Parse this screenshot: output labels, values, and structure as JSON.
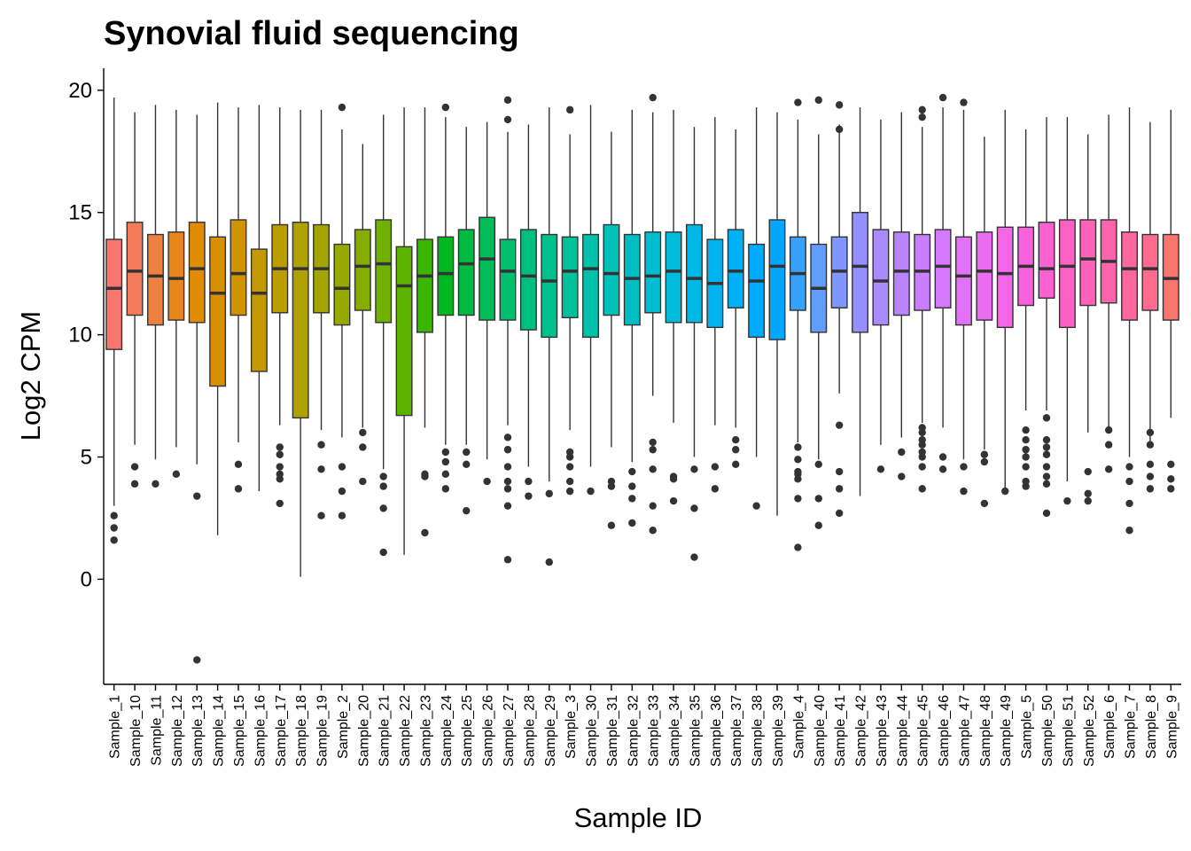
{
  "chart_data": {
    "type": "boxplot",
    "title": "Synovial fluid sequencing",
    "xlabel": "Sample ID",
    "ylabel": "Log2 CPM",
    "ylim": [
      -4.3,
      20.9
    ],
    "yticks": [
      0,
      5,
      10,
      15,
      20
    ],
    "grid": false,
    "legend": "none",
    "categories": [
      "Sample_1",
      "Sample_10",
      "Sample_11",
      "Sample_12",
      "Sample_13",
      "Sample_14",
      "Sample_15",
      "Sample_16",
      "Sample_17",
      "Sample_18",
      "Sample_19",
      "Sample_2",
      "Sample_20",
      "Sample_21",
      "Sample_22",
      "Sample_23",
      "Sample_24",
      "Sample_25",
      "Sample_26",
      "Sample_27",
      "Sample_28",
      "Sample_29",
      "Sample_3",
      "Sample_30",
      "Sample_31",
      "Sample_32",
      "Sample_33",
      "Sample_34",
      "Sample_35",
      "Sample_36",
      "Sample_37",
      "Sample_38",
      "Sample_39",
      "Sample_4",
      "Sample_40",
      "Sample_41",
      "Sample_42",
      "Sample_43",
      "Sample_44",
      "Sample_45",
      "Sample_46",
      "Sample_47",
      "Sample_48",
      "Sample_49",
      "Sample_5",
      "Sample_50",
      "Sample_51",
      "Sample_52",
      "Sample_6",
      "Sample_7",
      "Sample_8",
      "Sample_9"
    ],
    "boxes": [
      {
        "whislo": 3.0,
        "q1": 9.4,
        "med": 11.9,
        "q3": 13.9,
        "whishi": 19.7,
        "outliers": [
          1.6,
          2.1,
          2.6
        ],
        "color": "#F8766D"
      },
      {
        "whislo": 5.5,
        "q1": 10.8,
        "med": 12.6,
        "q3": 14.6,
        "whishi": 19.1,
        "outliers": [
          3.9,
          4.6
        ],
        "color": "#F37B59"
      },
      {
        "whislo": 4.9,
        "q1": 10.4,
        "med": 12.4,
        "q3": 14.1,
        "whishi": 19.4,
        "outliers": [
          3.9
        ],
        "color": "#ED8141"
      },
      {
        "whislo": 5.4,
        "q1": 10.6,
        "med": 12.3,
        "q3": 14.2,
        "whishi": 19.2,
        "outliers": [
          4.3
        ],
        "color": "#E7861B"
      },
      {
        "whislo": 4.7,
        "q1": 10.5,
        "med": 12.7,
        "q3": 14.6,
        "whishi": 19.0,
        "outliers": [
          3.4,
          -3.3
        ],
        "color": "#E08B00"
      },
      {
        "whislo": 1.8,
        "q1": 7.9,
        "med": 11.7,
        "q3": 14.0,
        "whishi": 19.5,
        "outliers": [],
        "color": "#D89000"
      },
      {
        "whislo": 5.6,
        "q1": 10.8,
        "med": 12.5,
        "q3": 14.7,
        "whishi": 19.3,
        "outliers": [
          3.7,
          4.7
        ],
        "color": "#CF9400"
      },
      {
        "whislo": 3.6,
        "q1": 8.5,
        "med": 11.7,
        "q3": 13.5,
        "whishi": 19.4,
        "outliers": [],
        "color": "#C59900"
      },
      {
        "whislo": 6.3,
        "q1": 10.9,
        "med": 12.7,
        "q3": 14.5,
        "whishi": 19.3,
        "outliers": [
          3.1,
          4.1,
          4.3,
          4.6,
          5.1,
          5.4
        ],
        "color": "#BB9D00"
      },
      {
        "whislo": 0.1,
        "q1": 6.6,
        "med": 12.7,
        "q3": 14.6,
        "whishi": 19.2,
        "outliers": [],
        "color": "#AFA100"
      },
      {
        "whislo": 6.1,
        "q1": 10.9,
        "med": 12.7,
        "q3": 14.5,
        "whishi": 19.2,
        "outliers": [
          2.6,
          4.5,
          5.5
        ],
        "color": "#A3A500"
      },
      {
        "whislo": 5.8,
        "q1": 10.4,
        "med": 11.9,
        "q3": 13.7,
        "whishi": 18.4,
        "outliers": [
          2.6,
          3.6,
          4.6,
          19.3
        ],
        "color": "#95A900"
      },
      {
        "whislo": 6.2,
        "q1": 11.0,
        "med": 12.8,
        "q3": 14.3,
        "whishi": 17.8,
        "outliers": [
          4.0,
          5.4,
          6.0
        ],
        "color": "#85AD00"
      },
      {
        "whislo": 4.5,
        "q1": 10.5,
        "med": 12.9,
        "q3": 14.7,
        "whishi": 19.0,
        "outliers": [
          1.1,
          2.9,
          3.8,
          4.2
        ],
        "color": "#72B000"
      },
      {
        "whislo": 1.0,
        "q1": 6.7,
        "med": 12.0,
        "q3": 13.6,
        "whishi": 19.3,
        "outliers": [],
        "color": "#5BB300"
      },
      {
        "whislo": 6.2,
        "q1": 10.1,
        "med": 12.4,
        "q3": 13.9,
        "whishi": 19.3,
        "outliers": [
          1.9,
          4.2,
          4.3
        ],
        "color": "#39B600"
      },
      {
        "whislo": 5.5,
        "q1": 10.8,
        "med": 12.5,
        "q3": 14.0,
        "whishi": 18.9,
        "outliers": [
          3.7,
          4.3,
          4.8,
          5.2,
          19.3
        ],
        "color": "#00B81F"
      },
      {
        "whislo": 5.5,
        "q1": 10.8,
        "med": 12.9,
        "q3": 14.3,
        "whishi": 18.5,
        "outliers": [
          2.8,
          4.7,
          5.2
        ],
        "color": "#00BA42"
      },
      {
        "whislo": 4.9,
        "q1": 10.6,
        "med": 13.1,
        "q3": 14.8,
        "whishi": 18.7,
        "outliers": [
          4.0
        ],
        "color": "#00BC59"
      },
      {
        "whislo": 6.3,
        "q1": 10.6,
        "med": 12.6,
        "q3": 13.9,
        "whishi": 18.3,
        "outliers": [
          0.8,
          3.0,
          3.7,
          4.0,
          4.6,
          5.3,
          5.8,
          18.8,
          19.6
        ],
        "color": "#00BE6C"
      },
      {
        "whislo": 4.6,
        "q1": 10.2,
        "med": 12.4,
        "q3": 14.3,
        "whishi": 18.6,
        "outliers": [
          3.4,
          4.0
        ],
        "color": "#00BF7D"
      },
      {
        "whislo": 4.0,
        "q1": 9.9,
        "med": 12.2,
        "q3": 14.1,
        "whishi": 19.3,
        "outliers": [
          0.7,
          3.5
        ],
        "color": "#00C08D"
      },
      {
        "whislo": 6.1,
        "q1": 10.7,
        "med": 12.6,
        "q3": 14.0,
        "whishi": 18.2,
        "outliers": [
          3.6,
          4.0,
          4.6,
          5.0,
          5.2,
          19.2
        ],
        "color": "#00C19C"
      },
      {
        "whislo": 4.6,
        "q1": 9.9,
        "med": 12.7,
        "q3": 14.1,
        "whishi": 19.4,
        "outliers": [
          3.6
        ],
        "color": "#00C1AA"
      },
      {
        "whislo": 5.4,
        "q1": 10.8,
        "med": 12.5,
        "q3": 14.5,
        "whishi": 18.3,
        "outliers": [
          2.2,
          3.8,
          4.0
        ],
        "color": "#00C0B8"
      },
      {
        "whislo": 4.8,
        "q1": 10.4,
        "med": 12.3,
        "q3": 14.1,
        "whishi": 19.2,
        "outliers": [
          2.3,
          3.3,
          3.8,
          4.4
        ],
        "color": "#00BFC4"
      },
      {
        "whislo": 7.5,
        "q1": 10.9,
        "med": 12.4,
        "q3": 14.2,
        "whishi": 19.1,
        "outliers": [
          2.0,
          3.0,
          4.5,
          5.3,
          5.6,
          19.7
        ],
        "color": "#00BDD0"
      },
      {
        "whislo": 6.4,
        "q1": 10.5,
        "med": 12.6,
        "q3": 14.2,
        "whishi": 19.2,
        "outliers": [
          3.2,
          4.1,
          4.2
        ],
        "color": "#00BBDB"
      },
      {
        "whislo": 5.0,
        "q1": 10.5,
        "med": 12.3,
        "q3": 14.5,
        "whishi": 18.5,
        "outliers": [
          0.9,
          2.9,
          4.5
        ],
        "color": "#00B8E5"
      },
      {
        "whislo": 6.3,
        "q1": 10.3,
        "med": 12.1,
        "q3": 13.9,
        "whishi": 18.9,
        "outliers": [
          3.7,
          4.6
        ],
        "color": "#00B4EF"
      },
      {
        "whislo": 6.2,
        "q1": 11.1,
        "med": 12.6,
        "q3": 14.3,
        "whishi": 18.4,
        "outliers": [
          4.7,
          5.3,
          5.7
        ],
        "color": "#00B0F6"
      },
      {
        "whislo": 5.0,
        "q1": 9.9,
        "med": 12.2,
        "q3": 13.7,
        "whishi": 19.3,
        "outliers": [
          3.0
        ],
        "color": "#00ABFD"
      },
      {
        "whislo": 2.6,
        "q1": 9.8,
        "med": 12.8,
        "q3": 14.7,
        "whishi": 19.1,
        "outliers": [],
        "color": "#00A6FF"
      },
      {
        "whislo": 5.6,
        "q1": 11.0,
        "med": 12.5,
        "q3": 14.0,
        "whishi": 18.8,
        "outliers": [
          1.3,
          3.3,
          4.1,
          4.3,
          4.4,
          4.9,
          5.4,
          19.5
        ],
        "color": "#35A2FF"
      },
      {
        "whislo": 4.9,
        "q1": 10.1,
        "med": 11.9,
        "q3": 13.7,
        "whishi": 18.2,
        "outliers": [
          2.2,
          3.3,
          4.7,
          19.6
        ],
        "color": "#619CFF"
      },
      {
        "whislo": 7.6,
        "q1": 11.1,
        "med": 12.6,
        "q3": 14.0,
        "whishi": 18.6,
        "outliers": [
          2.7,
          3.7,
          4.4,
          6.3,
          18.4,
          19.4
        ],
        "color": "#7F96FF"
      },
      {
        "whislo": 3.4,
        "q1": 10.1,
        "med": 12.8,
        "q3": 15.0,
        "whishi": 19.3,
        "outliers": [],
        "color": "#9590FF"
      },
      {
        "whislo": 5.5,
        "q1": 10.4,
        "med": 12.2,
        "q3": 14.3,
        "whishi": 18.8,
        "outliers": [
          4.5
        ],
        "color": "#A98AFF"
      },
      {
        "whislo": 5.8,
        "q1": 10.8,
        "med": 12.6,
        "q3": 14.2,
        "whishi": 19.1,
        "outliers": [
          4.2,
          5.2
        ],
        "color": "#BA84FF"
      },
      {
        "whislo": 6.4,
        "q1": 11.0,
        "med": 12.6,
        "q3": 14.1,
        "whishi": 18.5,
        "outliers": [
          3.7,
          4.6,
          5.0,
          5.2,
          5.5,
          5.7,
          6.0,
          6.2,
          18.9,
          19.2
        ],
        "color": "#C97EFF"
      },
      {
        "whislo": 6.2,
        "q1": 11.1,
        "med": 12.8,
        "q3": 14.3,
        "whishi": 19.3,
        "outliers": [
          4.5,
          5.0,
          19.7
        ],
        "color": "#D678FD"
      },
      {
        "whislo": 4.9,
        "q1": 10.4,
        "med": 12.4,
        "q3": 14.0,
        "whishi": 19.2,
        "outliers": [
          3.6,
          4.6,
          19.5
        ],
        "color": "#E172F7"
      },
      {
        "whislo": 5.3,
        "q1": 10.6,
        "med": 12.6,
        "q3": 14.2,
        "whishi": 18.1,
        "outliers": [
          3.1,
          4.8,
          5.1
        ],
        "color": "#EB6CF0"
      },
      {
        "whislo": 3.7,
        "q1": 10.3,
        "med": 12.5,
        "q3": 14.4,
        "whishi": 19.2,
        "outliers": [
          3.6
        ],
        "color": "#F266E7"
      },
      {
        "whislo": 6.9,
        "q1": 11.2,
        "med": 12.8,
        "q3": 14.4,
        "whishi": 18.4,
        "outliers": [
          3.8,
          4.0,
          4.6,
          5.0,
          5.3,
          5.7,
          6.1
        ],
        "color": "#F863DD"
      },
      {
        "whislo": 6.9,
        "q1": 11.5,
        "med": 12.7,
        "q3": 14.6,
        "whishi": 18.9,
        "outliers": [
          2.7,
          3.9,
          4.2,
          4.6,
          5.1,
          5.4,
          5.7,
          6.6
        ],
        "color": "#FC61D2"
      },
      {
        "whislo": 4.0,
        "q1": 10.3,
        "med": 12.8,
        "q3": 14.7,
        "whishi": 18.9,
        "outliers": [
          3.2
        ],
        "color": "#FE61C6"
      },
      {
        "whislo": 6.0,
        "q1": 11.2,
        "med": 13.1,
        "q3": 14.7,
        "whishi": 18.2,
        "outliers": [
          3.2,
          3.5,
          4.4
        ],
        "color": "#FF62B9"
      },
      {
        "whislo": 6.2,
        "q1": 11.3,
        "med": 13.0,
        "q3": 14.7,
        "whishi": 19.0,
        "outliers": [
          4.5,
          5.5,
          6.1
        ],
        "color": "#FF64AB"
      },
      {
        "whislo": 5.0,
        "q1": 10.6,
        "med": 12.7,
        "q3": 14.2,
        "whishi": 19.3,
        "outliers": [
          2.0,
          3.1,
          4.0,
          4.6
        ],
        "color": "#FE679D"
      },
      {
        "whislo": 5.6,
        "q1": 11.0,
        "med": 12.7,
        "q3": 14.1,
        "whishi": 18.7,
        "outliers": [
          3.7,
          4.2,
          4.7,
          5.5,
          6.0
        ],
        "color": "#FB6C8E"
      },
      {
        "whislo": 6.6,
        "q1": 10.6,
        "med": 12.3,
        "q3": 14.1,
        "whishi": 19.2,
        "outliers": [
          3.7,
          4.1,
          4.7
        ],
        "color": "#F8766D"
      }
    ]
  }
}
